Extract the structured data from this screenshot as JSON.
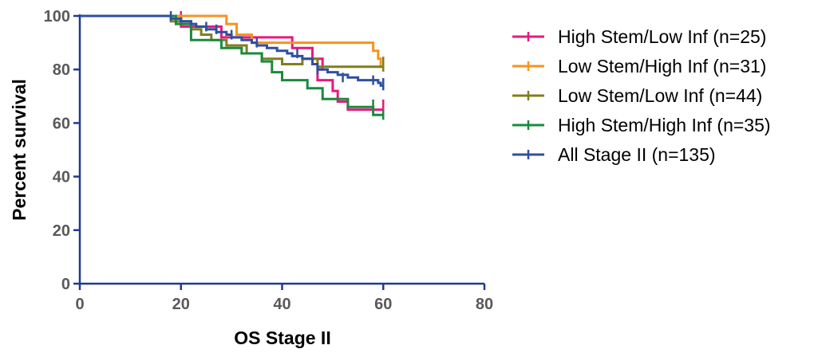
{
  "chart_data": {
    "type": "line",
    "subtype": "kaplan-meier",
    "title": "",
    "xlabel": "OS Stage II",
    "ylabel": "Percent survival",
    "xlim": [
      0,
      80
    ],
    "ylim": [
      0,
      100
    ],
    "xticks": [
      0,
      20,
      40,
      60,
      80
    ],
    "yticks": [
      0,
      20,
      40,
      60,
      80,
      100
    ],
    "grid": false,
    "legend_position": "right",
    "series": [
      {
        "name": "High Stem/Low Inf (n=25)",
        "color": "#e6197e",
        "steps": [
          [
            0,
            100
          ],
          [
            20,
            100
          ],
          [
            20,
            96
          ],
          [
            28,
            96
          ],
          [
            28,
            92
          ],
          [
            42,
            92
          ],
          [
            42,
            88
          ],
          [
            46,
            88
          ],
          [
            46,
            84
          ],
          [
            48,
            84
          ],
          [
            48,
            80
          ],
          [
            47,
            80
          ],
          [
            47,
            76
          ],
          [
            50,
            76
          ],
          [
            50,
            72
          ],
          [
            51,
            72
          ],
          [
            51,
            68
          ],
          [
            53,
            68
          ],
          [
            53,
            65
          ],
          [
            60,
            65
          ]
        ],
        "censors": [
          [
            20,
            100
          ],
          [
            60,
            65
          ],
          [
            60,
            67
          ]
        ]
      },
      {
        "name": "Low Stem/High Inf (n=31)",
        "color": "#f7931e",
        "steps": [
          [
            0,
            100
          ],
          [
            29,
            100
          ],
          [
            29,
            97
          ],
          [
            31,
            97
          ],
          [
            31,
            93
          ],
          [
            34,
            93
          ],
          [
            34,
            90
          ],
          [
            58,
            90
          ],
          [
            58,
            87
          ],
          [
            59,
            87
          ],
          [
            59,
            84
          ],
          [
            59.5,
            84
          ],
          [
            59.5,
            81
          ],
          [
            60,
            81
          ]
        ],
        "censors": [
          [
            60,
            81
          ]
        ]
      },
      {
        "name": "Low Stem/Low Inf (n=44)",
        "color": "#7f7f1e",
        "steps": [
          [
            0,
            100
          ],
          [
            18,
            100
          ],
          [
            18,
            98
          ],
          [
            22,
            98
          ],
          [
            22,
            95
          ],
          [
            24,
            95
          ],
          [
            24,
            93
          ],
          [
            26,
            93
          ],
          [
            26,
            91
          ],
          [
            29,
            91
          ],
          [
            29,
            89
          ],
          [
            33,
            89
          ],
          [
            33,
            86
          ],
          [
            36,
            86
          ],
          [
            36,
            84
          ],
          [
            40,
            84
          ],
          [
            40,
            82
          ],
          [
            44,
            82
          ],
          [
            44,
            84
          ],
          [
            47,
            84
          ],
          [
            47,
            81
          ],
          [
            60,
            81
          ]
        ],
        "censors": [
          [
            60,
            83
          ],
          [
            60,
            81
          ]
        ]
      },
      {
        "name": "High Stem/High Inf (n=35)",
        "color": "#1a8a3c",
        "steps": [
          [
            0,
            100
          ],
          [
            19,
            100
          ],
          [
            19,
            97
          ],
          [
            22,
            97
          ],
          [
            22,
            91
          ],
          [
            28,
            91
          ],
          [
            28,
            88
          ],
          [
            32,
            88
          ],
          [
            32,
            86
          ],
          [
            36,
            86
          ],
          [
            36,
            83
          ],
          [
            38,
            83
          ],
          [
            38,
            79
          ],
          [
            40,
            79
          ],
          [
            40,
            76
          ],
          [
            45,
            76
          ],
          [
            45,
            73
          ],
          [
            48,
            73
          ],
          [
            48,
            69
          ],
          [
            53,
            69
          ],
          [
            53,
            66
          ],
          [
            58,
            66
          ],
          [
            58,
            63
          ],
          [
            60,
            63
          ]
        ],
        "censors": [
          [
            58,
            67
          ],
          [
            60,
            63
          ]
        ]
      },
      {
        "name": "All Stage II (n=135)",
        "color": "#2f4fa2",
        "steps": [
          [
            0,
            100
          ],
          [
            18,
            100
          ],
          [
            18,
            99
          ],
          [
            20,
            99
          ],
          [
            20,
            98
          ],
          [
            22,
            98
          ],
          [
            22,
            97
          ],
          [
            23,
            97
          ],
          [
            23,
            96
          ],
          [
            25,
            96
          ],
          [
            25,
            95
          ],
          [
            27,
            95
          ],
          [
            27,
            94
          ],
          [
            29,
            94
          ],
          [
            29,
            93
          ],
          [
            30,
            93
          ],
          [
            30,
            92
          ],
          [
            32,
            92
          ],
          [
            32,
            91
          ],
          [
            34,
            91
          ],
          [
            34,
            90
          ],
          [
            35,
            90
          ],
          [
            35,
            89
          ],
          [
            37,
            89
          ],
          [
            37,
            88
          ],
          [
            39,
            88
          ],
          [
            39,
            87
          ],
          [
            41,
            87
          ],
          [
            41,
            86
          ],
          [
            42,
            86
          ],
          [
            42,
            85
          ],
          [
            44,
            85
          ],
          [
            44,
            84
          ],
          [
            46,
            84
          ],
          [
            46,
            82
          ],
          [
            47,
            82
          ],
          [
            47,
            80
          ],
          [
            49,
            80
          ],
          [
            49,
            79
          ],
          [
            51,
            79
          ],
          [
            51,
            78
          ],
          [
            53,
            78
          ],
          [
            53,
            77
          ],
          [
            55,
            77
          ],
          [
            55,
            76
          ],
          [
            59,
            76
          ],
          [
            59,
            75
          ],
          [
            59.5,
            75
          ],
          [
            59.5,
            74
          ],
          [
            60,
            74
          ]
        ],
        "censors": [
          [
            18,
            100
          ],
          [
            25,
            96
          ],
          [
            27,
            95
          ],
          [
            30,
            93
          ],
          [
            35,
            90
          ],
          [
            43,
            86
          ],
          [
            47,
            80
          ],
          [
            52,
            77
          ],
          [
            58,
            76
          ],
          [
            60,
            75
          ],
          [
            60,
            74
          ]
        ]
      }
    ]
  }
}
